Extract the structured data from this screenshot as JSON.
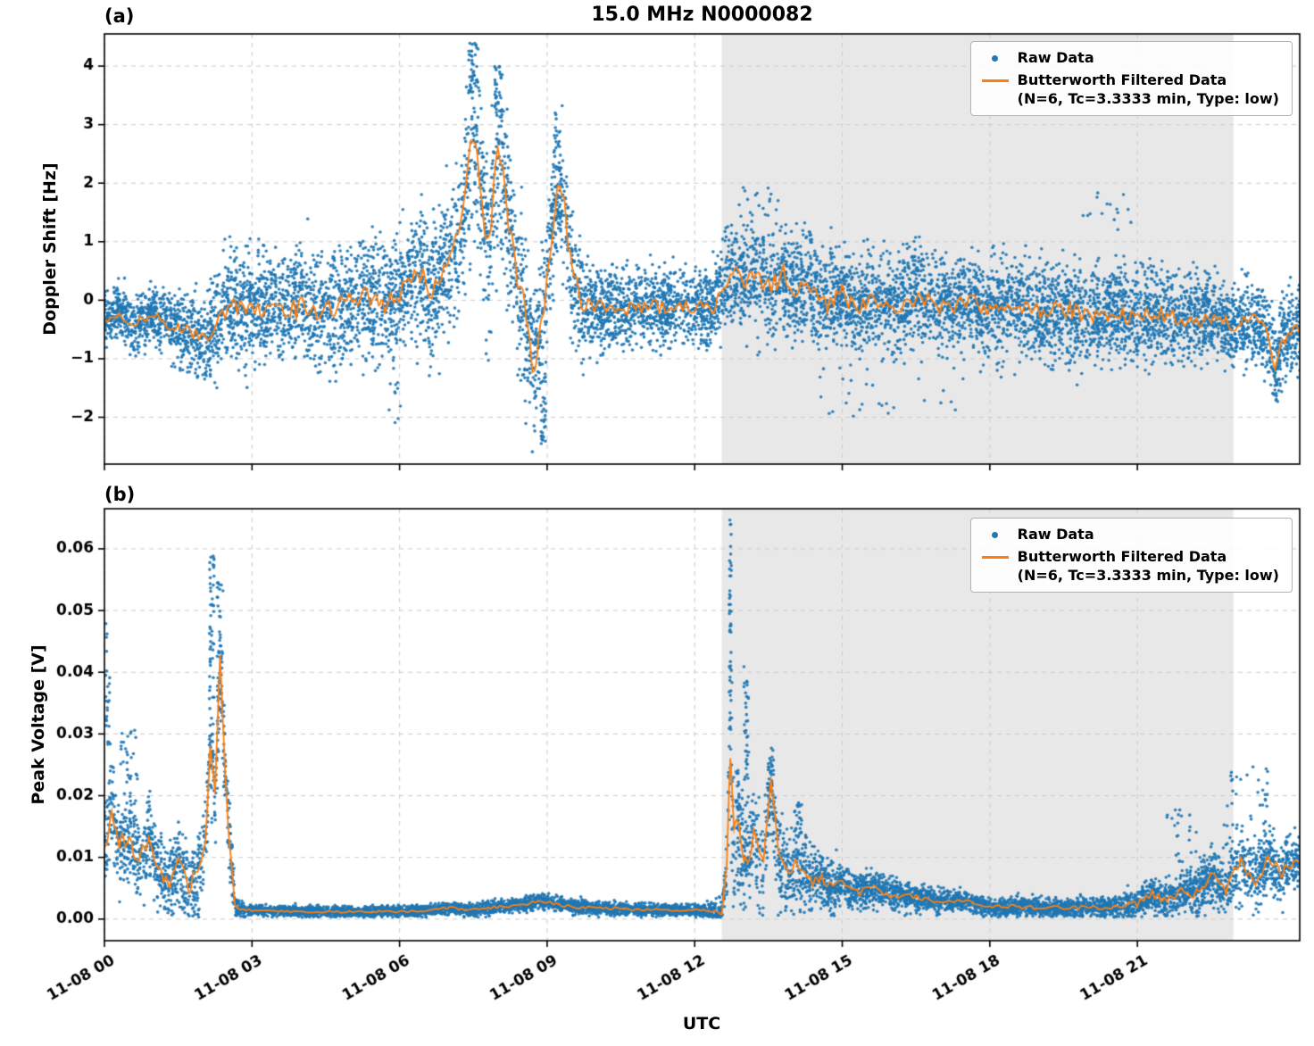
{
  "figure": {
    "title": "15.0 MHz N0000082",
    "xlabel": "UTC",
    "background": "#ffffff",
    "colors": {
      "raw": "#1f77b4",
      "filtered": "#ff7f0e",
      "shade": "#e8e8e8",
      "grid": "#cccccc",
      "axis": "#000000",
      "text": "#000000"
    }
  },
  "legend": {
    "raw_label": "Raw Data",
    "filtered_label": "Butterworth Filtered Data",
    "filtered_sublabel": "(N=6, Tc=3.3333 min, Type: low)"
  },
  "chart_data": [
    {
      "type": "scatter",
      "panel_label": "(a)",
      "title": "15.0 MHz N0000082",
      "xlabel": "",
      "ylabel": "Doppler Shift [Hz]",
      "xlim": [
        0,
        24.3
      ],
      "ylim": [
        -2.8,
        4.55
      ],
      "x_ticks": [
        0,
        3,
        6,
        9,
        12,
        15,
        18,
        21
      ],
      "x_tick_labels": [
        "11-08 00",
        "11-08 03",
        "11-08 06",
        "11-08 09",
        "11-08 12",
        "11-08 15",
        "11-08 18",
        "11-08 21"
      ],
      "show_x_tick_labels": false,
      "y_ticks": [
        -2,
        -1,
        0,
        1,
        2,
        3,
        4
      ],
      "y_tick_labels": [
        "−2",
        "−1",
        "0",
        "1",
        "2",
        "3",
        "4"
      ],
      "shaded_region": [
        12.55,
        22.95
      ],
      "grid": true,
      "legend_position": "upper right",
      "legend": [
        "Raw Data",
        "Butterworth Filtered Data (N=6, Tc=3.3333 min, Type: low)"
      ],
      "series": [
        {
          "name": "Raw Data",
          "type": "scatter",
          "color": "#1f77b4",
          "n_points": 9000,
          "clamp_min": null,
          "envelope": {
            "spread_x": [
              0,
              1,
              2,
              2.5,
              3,
              4,
              5,
              6,
              7,
              7.5,
              8,
              8.5,
              9,
              9.5,
              10,
              11,
              12,
              12.7,
              13,
              14,
              15,
              16,
              17,
              18,
              19,
              20,
              21,
              22,
              23,
              24,
              24.3
            ],
            "spread_v": [
              0.35,
              0.4,
              0.6,
              0.8,
              0.8,
              0.8,
              0.85,
              0.85,
              1.0,
              1.3,
              1.3,
              1.1,
              1.0,
              0.9,
              0.55,
              0.55,
              0.5,
              0.7,
              0.75,
              0.7,
              0.7,
              0.7,
              0.65,
              0.7,
              0.65,
              0.7,
              0.65,
              0.6,
              0.5,
              0.6,
              0.6
            ]
          },
          "outliers": [
            {
              "x": 8.9,
              "w": 0.15,
              "ymin": -2.45,
              "ymax": -1.2,
              "n": 35
            },
            {
              "x": 7.5,
              "w": 0.2,
              "ymin": 3.6,
              "ymax": 4.4,
              "n": 30
            },
            {
              "x": 8.0,
              "w": 0.15,
              "ymin": 3.2,
              "ymax": 4.0,
              "n": 20
            },
            {
              "x": 9.2,
              "w": 0.12,
              "ymin": 2.2,
              "ymax": 3.2,
              "n": 20
            },
            {
              "x": 5.9,
              "w": 0.3,
              "ymin": -2.1,
              "ymax": -1.4,
              "n": 10
            },
            {
              "x": 16.0,
              "w": 3.0,
              "ymin": -2.0,
              "ymax": -1.3,
              "n": 25
            },
            {
              "x": 13.3,
              "w": 0.8,
              "ymin": 1.3,
              "ymax": 2.0,
              "n": 20
            },
            {
              "x": 20.3,
              "w": 1.2,
              "ymin": 1.2,
              "ymax": 1.9,
              "n": 15
            }
          ]
        },
        {
          "name": "Butterworth Filtered Data (N=6, Tc=3.3333 min, Type: low)",
          "type": "line",
          "color": "#ff7f0e",
          "jitter": 0.25,
          "x": [
            0,
            0.3,
            0.6,
            0.9,
            1.2,
            1.5,
            1.8,
            2.1,
            2.3,
            2.5,
            2.8,
            3.1,
            3.5,
            4.0,
            4.5,
            5.0,
            5.3,
            5.6,
            5.9,
            6.2,
            6.4,
            6.6,
            6.8,
            7.0,
            7.2,
            7.4,
            7.5,
            7.6,
            7.7,
            7.8,
            7.9,
            8.0,
            8.1,
            8.2,
            8.3,
            8.4,
            8.5,
            8.6,
            8.7,
            8.8,
            8.9,
            9.0,
            9.2,
            9.35,
            9.5,
            9.7,
            10.0,
            10.5,
            11.0,
            11.5,
            12.0,
            12.4,
            12.6,
            12.8,
            13.0,
            13.2,
            13.5,
            13.8,
            14.0,
            14.3,
            14.6,
            15.0,
            15.3,
            15.6,
            16.0,
            16.5,
            17.0,
            17.5,
            18.0,
            18.5,
            19.0,
            19.5,
            20.0,
            20.5,
            21.0,
            21.5,
            22.0,
            22.5,
            23.0,
            23.3,
            23.6,
            23.8,
            24.0,
            24.2
          ],
          "y": [
            -0.35,
            -0.2,
            -0.45,
            -0.25,
            -0.35,
            -0.5,
            -0.55,
            -0.65,
            -0.4,
            -0.1,
            -0.15,
            -0.1,
            -0.2,
            -0.1,
            -0.15,
            -0.05,
            0.1,
            -0.1,
            0.0,
            0.3,
            0.5,
            0.1,
            0.3,
            0.6,
            1.2,
            2.2,
            2.9,
            2.4,
            1.4,
            0.8,
            1.8,
            2.5,
            2.3,
            1.5,
            0.9,
            0.4,
            0.1,
            -0.4,
            -1.0,
            -0.9,
            -0.3,
            0.4,
            1.9,
            1.6,
            0.5,
            -0.1,
            -0.1,
            -0.15,
            -0.1,
            -0.15,
            -0.1,
            -0.15,
            0.3,
            0.55,
            0.35,
            0.5,
            0.2,
            0.45,
            0.15,
            0.35,
            -0.1,
            0.1,
            -0.2,
            0.0,
            -0.1,
            0.05,
            -0.1,
            -0.05,
            -0.15,
            -0.1,
            -0.2,
            -0.15,
            -0.25,
            -0.2,
            -0.3,
            -0.25,
            -0.35,
            -0.3,
            -0.45,
            -0.3,
            -0.5,
            -1.1,
            -0.6,
            -0.5
          ]
        }
      ]
    },
    {
      "type": "scatter",
      "panel_label": "(b)",
      "title": "",
      "xlabel": "UTC",
      "ylabel": "Peak Voltage [V]",
      "xlim": [
        0,
        24.3
      ],
      "ylim": [
        -0.0035,
        0.0665
      ],
      "x_ticks": [
        0,
        3,
        6,
        9,
        12,
        15,
        18,
        21
      ],
      "x_tick_labels": [
        "11-08 00",
        "11-08 03",
        "11-08 06",
        "11-08 09",
        "11-08 12",
        "11-08 15",
        "11-08 18",
        "11-08 21"
      ],
      "show_x_tick_labels": true,
      "y_ticks": [
        0.0,
        0.01,
        0.02,
        0.03,
        0.04,
        0.05,
        0.06
      ],
      "y_tick_labels": [
        "0.00",
        "0.01",
        "0.02",
        "0.03",
        "0.04",
        "0.05",
        "0.06"
      ],
      "shaded_region": [
        12.55,
        22.95
      ],
      "grid": true,
      "legend_position": "upper right",
      "legend": [
        "Raw Data",
        "Butterworth Filtered Data (N=6, Tc=3.3333 min, Type: low)"
      ],
      "series": [
        {
          "name": "Raw Data",
          "type": "scatter",
          "color": "#1f77b4",
          "n_points": 8000,
          "clamp_min": 0.0003,
          "envelope": {
            "spread_x": [
              0,
              0.5,
              1,
              1.5,
              2,
              2.3,
              2.5,
              2.7,
              3,
              6,
              9,
              12,
              12.6,
              12.75,
              13,
              13.5,
              14,
              14.5,
              15,
              15.5,
              16,
              17,
              18,
              19,
              20,
              20.5,
              21,
              21.5,
              22,
              22.5,
              23,
              23.5,
              24,
              24.3
            ],
            "spread_v": [
              0.006,
              0.006,
              0.005,
              0.005,
              0.006,
              0.008,
              0.006,
              0.001,
              0.0007,
              0.0007,
              0.001,
              0.0007,
              0.002,
              0.012,
              0.008,
              0.007,
              0.005,
              0.004,
              0.003,
              0.0025,
              0.002,
              0.0015,
              0.0012,
              0.0012,
              0.0012,
              0.0015,
              0.002,
              0.0025,
              0.003,
              0.0035,
              0.004,
              0.0045,
              0.004,
              0.0035
            ]
          },
          "outliers": [
            {
              "x": 0.07,
              "w": 0.1,
              "ymin": 0.028,
              "ymax": 0.049,
              "n": 25
            },
            {
              "x": 0.5,
              "w": 0.35,
              "ymin": 0.018,
              "ymax": 0.032,
              "n": 25
            },
            {
              "x": 2.18,
              "w": 0.1,
              "ymin": 0.035,
              "ymax": 0.06,
              "n": 45
            },
            {
              "x": 2.35,
              "w": 0.12,
              "ymin": 0.03,
              "ymax": 0.055,
              "n": 35
            },
            {
              "x": 12.72,
              "w": 0.05,
              "ymin": 0.03,
              "ymax": 0.065,
              "n": 45
            },
            {
              "x": 13.05,
              "w": 0.1,
              "ymin": 0.022,
              "ymax": 0.041,
              "n": 35
            },
            {
              "x": 13.55,
              "w": 0.12,
              "ymin": 0.015,
              "ymax": 0.028,
              "n": 30
            },
            {
              "x": 14.1,
              "w": 0.15,
              "ymin": 0.012,
              "ymax": 0.019,
              "n": 25
            },
            {
              "x": 23.2,
              "w": 0.9,
              "ymin": 0.012,
              "ymax": 0.025,
              "n": 40
            },
            {
              "x": 21.9,
              "w": 0.6,
              "ymin": 0.01,
              "ymax": 0.018,
              "n": 20
            }
          ]
        },
        {
          "name": "Butterworth Filtered Data (N=6, Tc=3.3333 min, Type: low)",
          "type": "line",
          "color": "#ff7f0e",
          "jitter": 0.3,
          "x": [
            0,
            0.15,
            0.3,
            0.5,
            0.7,
            0.9,
            1.1,
            1.3,
            1.5,
            1.7,
            1.9,
            2.05,
            2.15,
            2.25,
            2.35,
            2.45,
            2.55,
            2.65,
            2.8,
            3.5,
            4.5,
            5.5,
            6.5,
            7.0,
            7.5,
            8.0,
            8.5,
            8.8,
            9.0,
            9.5,
            10.0,
            10.5,
            11.0,
            11.5,
            12.0,
            12.4,
            12.55,
            12.65,
            12.72,
            12.8,
            12.9,
            13.0,
            13.2,
            13.4,
            13.55,
            13.7,
            13.9,
            14.1,
            14.3,
            14.5,
            14.8,
            15.0,
            15.3,
            15.6,
            16.0,
            16.5,
            17.0,
            17.5,
            18.0,
            18.5,
            19.0,
            19.5,
            20.0,
            20.5,
            21.0,
            21.3,
            21.6,
            21.9,
            22.2,
            22.5,
            22.8,
            23.1,
            23.4,
            23.7,
            23.9,
            24.1
          ],
          "y": [
            0.01,
            0.018,
            0.012,
            0.014,
            0.009,
            0.013,
            0.008,
            0.006,
            0.009,
            0.005,
            0.007,
            0.012,
            0.03,
            0.02,
            0.042,
            0.025,
            0.012,
            0.002,
            0.0015,
            0.0013,
            0.0012,
            0.0012,
            0.0013,
            0.0018,
            0.0015,
            0.002,
            0.0022,
            0.003,
            0.0028,
            0.002,
            0.0018,
            0.0017,
            0.0015,
            0.0015,
            0.0014,
            0.0013,
            0.001,
            0.008,
            0.024,
            0.012,
            0.016,
            0.01,
            0.013,
            0.008,
            0.022,
            0.01,
            0.008,
            0.009,
            0.006,
            0.007,
            0.005,
            0.006,
            0.004,
            0.005,
            0.004,
            0.0035,
            0.003,
            0.0028,
            0.002,
            0.002,
            0.0018,
            0.0018,
            0.0018,
            0.002,
            0.0025,
            0.004,
            0.003,
            0.005,
            0.004,
            0.007,
            0.005,
            0.009,
            0.006,
            0.01,
            0.007,
            0.009
          ]
        }
      ]
    }
  ]
}
